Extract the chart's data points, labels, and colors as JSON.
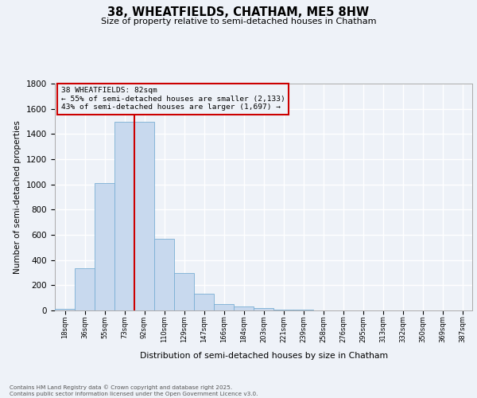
{
  "title": "38, WHEATFIELDS, CHATHAM, ME5 8HW",
  "subtitle": "Size of property relative to semi-detached houses in Chatham",
  "xlabel": "Distribution of semi-detached houses by size in Chatham",
  "ylabel": "Number of semi-detached properties",
  "bar_color": "#c8d9ee",
  "bar_edge_color": "#7aafd4",
  "background_color": "#eef2f8",
  "grid_color": "#ffffff",
  "categories": [
    "18sqm",
    "36sqm",
    "55sqm",
    "73sqm",
    "92sqm",
    "110sqm",
    "129sqm",
    "147sqm",
    "166sqm",
    "184sqm",
    "203sqm",
    "221sqm",
    "239sqm",
    "258sqm",
    "276sqm",
    "295sqm",
    "313sqm",
    "332sqm",
    "350sqm",
    "369sqm",
    "387sqm"
  ],
  "values": [
    15,
    335,
    1010,
    1500,
    1500,
    570,
    300,
    130,
    50,
    30,
    20,
    8,
    4,
    2,
    1,
    1,
    0,
    0,
    0,
    0,
    0
  ],
  "ylim": [
    0,
    1800
  ],
  "yticks": [
    0,
    200,
    400,
    600,
    800,
    1000,
    1200,
    1400,
    1600,
    1800
  ],
  "property_line_x": 3.5,
  "property_label": "38 WHEATFIELDS: 82sqm",
  "annotation_line1": "← 55% of semi-detached houses are smaller (2,133)",
  "annotation_line2": "43% of semi-detached houses are larger (1,697) →",
  "annotation_box_color": "#cc0000",
  "footer_line1": "Contains HM Land Registry data © Crown copyright and database right 2025.",
  "footer_line2": "Contains public sector information licensed under the Open Government Licence v3.0."
}
